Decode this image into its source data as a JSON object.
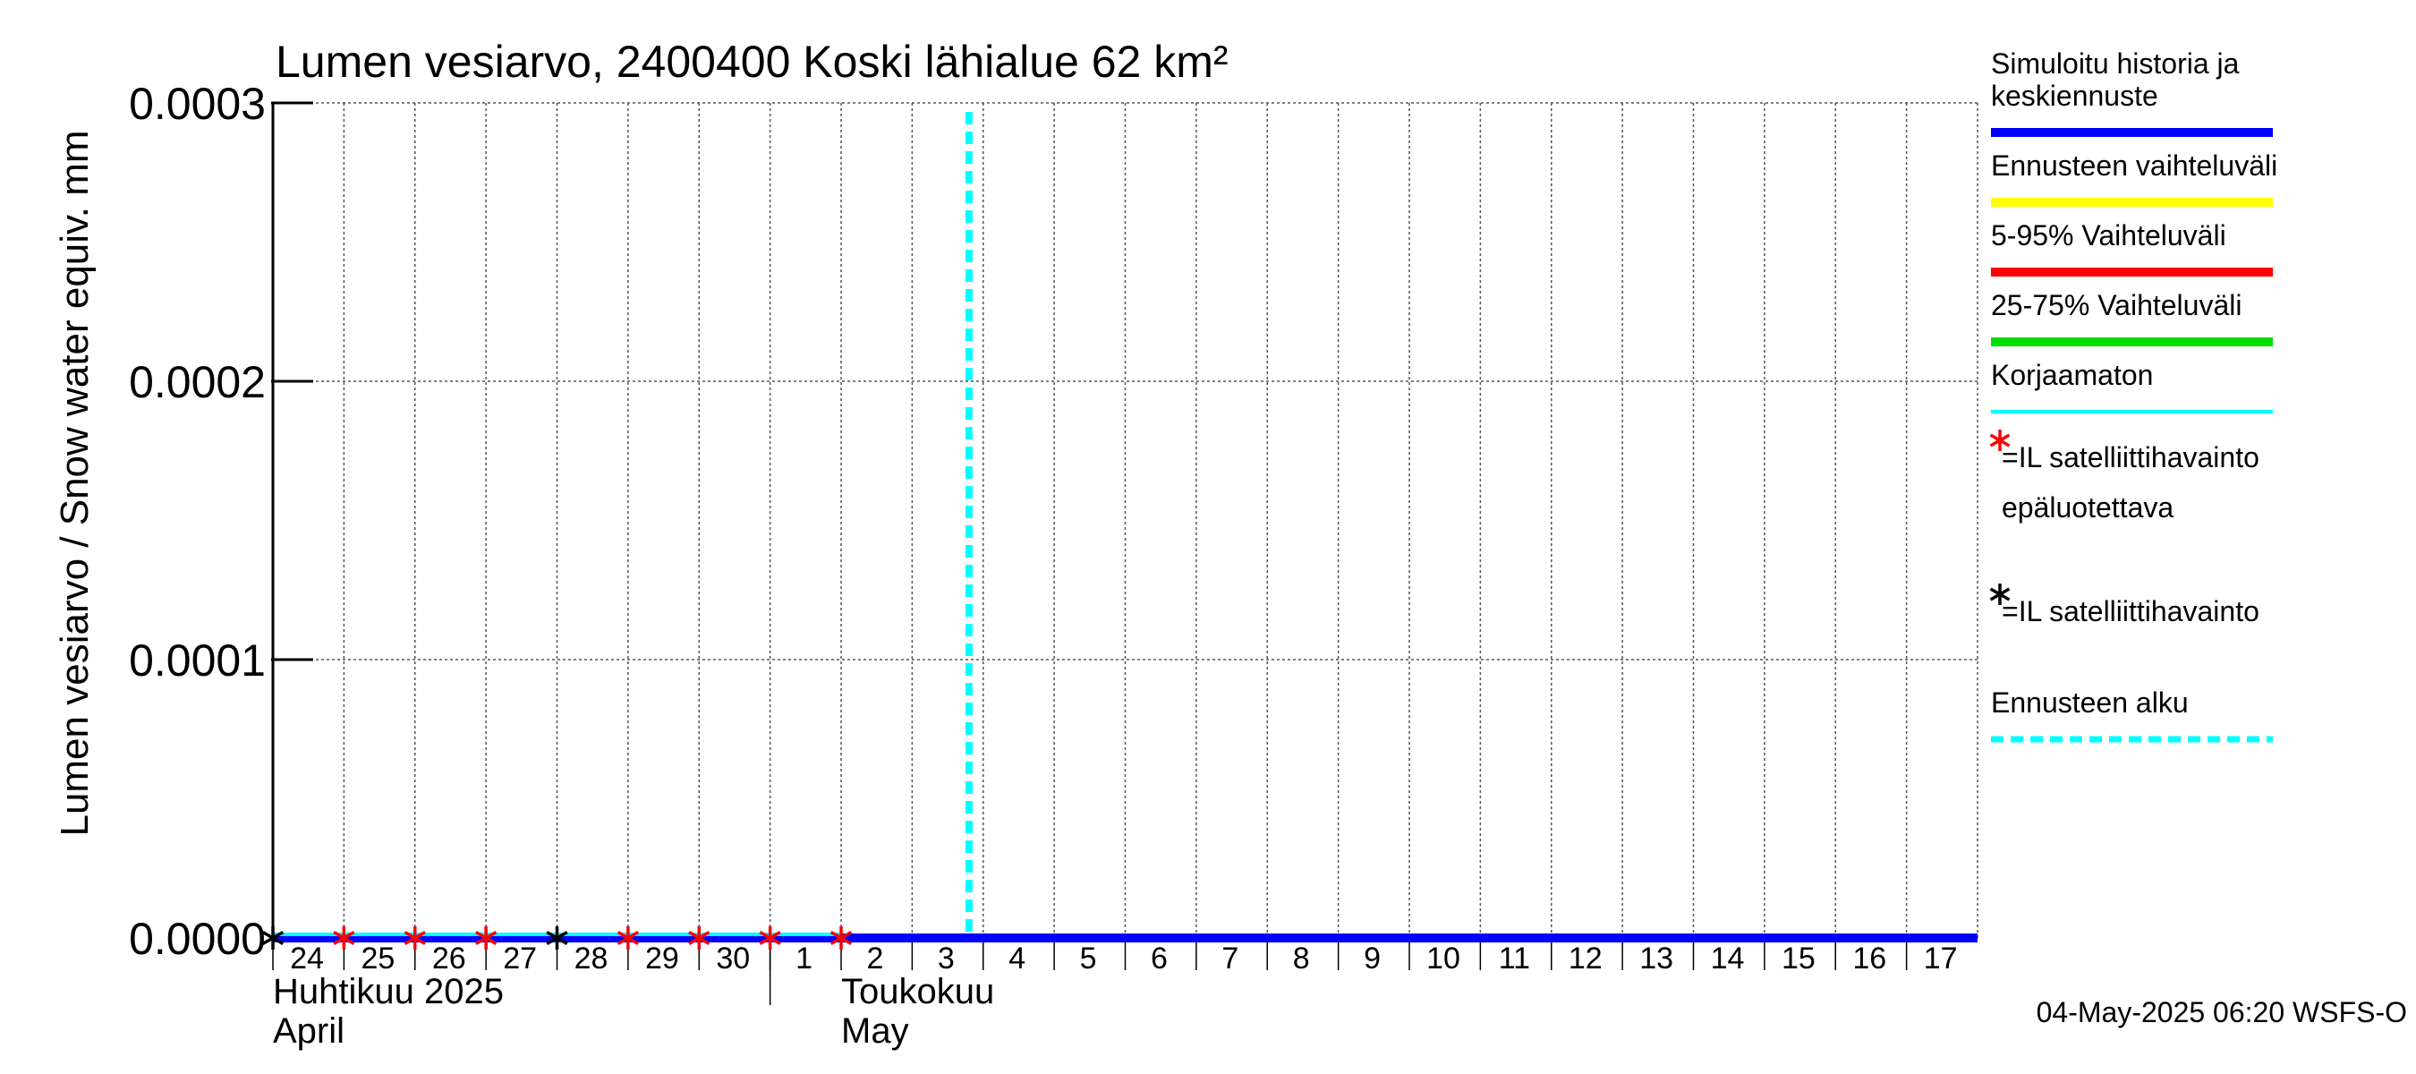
{
  "chart_data": {
    "type": "line",
    "title": "Lumen vesiarvo, 2400400 Koski lähialue 62 km²",
    "ylabel": "Lumen vesiarvo / Snow water equiv.   mm",
    "ylim": [
      0,
      0.0003
    ],
    "yticks": [
      "0.0000",
      "0.0001",
      "0.0002",
      "0.0003"
    ],
    "ytick_values": [
      0,
      0.0001,
      0.0002,
      0.0003
    ],
    "x_day_start": 0,
    "x_day_end": 24,
    "x_tick_days": [
      0,
      1,
      2,
      3,
      4,
      5,
      6,
      7,
      8,
      9,
      10,
      11,
      12,
      13,
      14,
      15,
      16,
      17,
      18,
      19,
      20,
      21,
      22,
      23
    ],
    "x_tick_labels": [
      "24",
      "25",
      "26",
      "27",
      "28",
      "29",
      "30",
      "1",
      "2",
      "3",
      "4",
      "5",
      "6",
      "7",
      "8",
      "9",
      "10",
      "11",
      "12",
      "13",
      "14",
      "15",
      "16",
      "17"
    ],
    "month_labels": [
      {
        "day": 0,
        "line1": "Huhtikuu  2025",
        "line2": "April"
      },
      {
        "day": 8,
        "line1": "Toukokuu",
        "line2": "May"
      }
    ],
    "month_boundary_day": 7,
    "series": [
      {
        "name": "Simuloitu historia ja keskiennuste",
        "color": "#0000ff",
        "x": [
          0,
          24
        ],
        "y": [
          0,
          0
        ]
      },
      {
        "name": "Korjaamaton",
        "color": "#00ffff",
        "x": [
          0,
          8
        ],
        "y": [
          0,
          0
        ]
      }
    ],
    "forecast_start_day": 9.8,
    "satellite_red_days": [
      1,
      2,
      3,
      5,
      6,
      7,
      8
    ],
    "satellite_black_days": [
      0,
      4
    ],
    "satellite_value": 0,
    "legend": {
      "position": "right",
      "items": [
        {
          "label_lines": [
            "Simuloitu historia ja",
            "keskiennuste"
          ],
          "kind": "line",
          "color": "#0000ff"
        },
        {
          "label_lines": [
            "Ennusteen vaihteluväli"
          ],
          "kind": "line",
          "color": "#ffff00"
        },
        {
          "label_lines": [
            "5-95% Vaihteluväli"
          ],
          "kind": "line",
          "color": "#ff0000"
        },
        {
          "label_lines": [
            "25-75% Vaihteluväli"
          ],
          "kind": "line",
          "color": "#00dd00"
        },
        {
          "label_lines": [
            "Korjaamaton"
          ],
          "kind": "thin",
          "color": "#00ffff"
        },
        {
          "label_lines": [
            "=IL satelliittihavainto",
            "epäluotettava"
          ],
          "kind": "star",
          "color": "#ff0000"
        },
        {
          "label_lines": [
            "=IL satelliittihavainto"
          ],
          "kind": "star",
          "color": "#000000"
        },
        {
          "label_lines": [
            "Ennusteen alku"
          ],
          "kind": "dashed",
          "color": "#00ffff"
        }
      ]
    },
    "timestamp": "04-May-2025 06:20 WSFS-O",
    "grid": true
  }
}
